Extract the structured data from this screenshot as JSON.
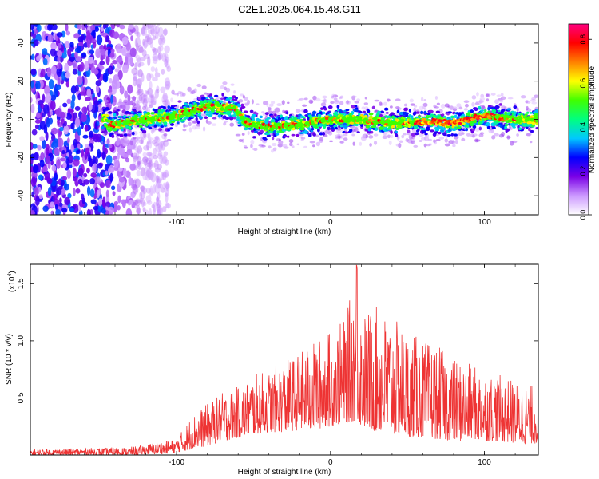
{
  "figure_title": "C2E1.2025.064.15.48.G11",
  "chart_data": [
    {
      "type": "heatmap",
      "xlabel": "Height of straight line (km)",
      "ylabel": "Frequency (Hz)",
      "xlim": [
        -195,
        135
      ],
      "ylim": [
        -50,
        50
      ],
      "x_ticks": [
        -100,
        0,
        100
      ],
      "y_ticks": [
        -40,
        -20,
        0,
        20,
        40
      ],
      "grid": false,
      "colorbar": {
        "label": "Normalized spectral amplitude",
        "range": [
          0.0,
          0.87
        ],
        "ticks": [
          0.0,
          0.2,
          0.4,
          0.6,
          0.8
        ],
        "colormap": [
          "#ffffff",
          "#cc99ff",
          "#7a00e6",
          "#0000ff",
          "#00c8ff",
          "#00ff80",
          "#40ff00",
          "#ffff00",
          "#ff8000",
          "#ff0000",
          "#ff0080"
        ]
      },
      "ridge_center_freq_hz": [
        {
          "x": -145,
          "y": -3
        },
        {
          "x": -120,
          "y": 0
        },
        {
          "x": -100,
          "y": 2
        },
        {
          "x": -80,
          "y": 7
        },
        {
          "x": -62,
          "y": 6
        },
        {
          "x": -55,
          "y": -2
        },
        {
          "x": -40,
          "y": -4
        },
        {
          "x": -25,
          "y": -3
        },
        {
          "x": 0,
          "y": 0
        },
        {
          "x": 20,
          "y": 0
        },
        {
          "x": 40,
          "y": -2
        },
        {
          "x": 60,
          "y": -1
        },
        {
          "x": 80,
          "y": -2
        },
        {
          "x": 100,
          "y": 2
        },
        {
          "x": 120,
          "y": 0
        },
        {
          "x": 135,
          "y": 0
        }
      ],
      "noise_region_x_km": [
        -195,
        -105
      ]
    },
    {
      "type": "line",
      "xlabel": "Height of straight line (km)",
      "ylabel": "SNR (10 * v/v)",
      "y_multiplier_label": "(x10",
      "y_multiplier_exp": "4",
      "y_multiplier_close": ")",
      "xlim": [
        -195,
        135
      ],
      "ylim": [
        0,
        1.67
      ],
      "x_ticks": [
        -100,
        0,
        100
      ],
      "y_ticks": [
        0.5,
        1.0,
        1.5
      ],
      "series_color": "#ee3333",
      "grid": false,
      "envelope": {
        "x": [
          -195,
          -160,
          -130,
          -110,
          -100,
          -90,
          -80,
          -70,
          -60,
          -50,
          -40,
          -30,
          -20,
          -10,
          0,
          10,
          17,
          20,
          30,
          40,
          50,
          60,
          70,
          80,
          90,
          100,
          110,
          120,
          135
        ],
        "upper": [
          0.05,
          0.06,
          0.07,
          0.12,
          0.14,
          0.35,
          0.45,
          0.55,
          0.6,
          0.7,
          0.75,
          0.82,
          0.9,
          1.0,
          1.1,
          1.2,
          1.67,
          1.25,
          1.3,
          1.2,
          1.1,
          1.0,
          0.95,
          0.85,
          0.8,
          0.75,
          0.7,
          0.65,
          0.6
        ],
        "lower": [
          0.0,
          0.0,
          0.0,
          0.01,
          0.02,
          0.05,
          0.08,
          0.12,
          0.15,
          0.18,
          0.2,
          0.2,
          0.22,
          0.22,
          0.25,
          0.28,
          0.3,
          0.25,
          0.2,
          0.18,
          0.16,
          0.15,
          0.14,
          0.12,
          0.12,
          0.12,
          0.12,
          0.1,
          0.1
        ]
      }
    }
  ]
}
